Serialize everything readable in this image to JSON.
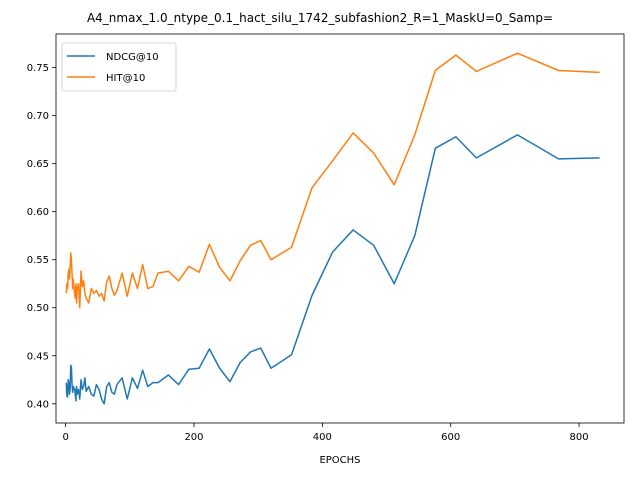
{
  "chart_data": {
    "type": "line",
    "title": "A4_nmax_1.0_ntype_0.1_hact_silu_1742_subfashion2_R=1_MaskU=0_Samp=",
    "xlabel": "EPOCHS",
    "ylabel": "",
    "xlim": [
      -15,
      870
    ],
    "ylim": [
      0.38,
      0.785
    ],
    "xticks": [
      0,
      200,
      400,
      600,
      800
    ],
    "yticks": [
      0.4,
      0.45,
      0.5,
      0.55,
      0.6,
      0.65,
      0.7,
      0.75
    ],
    "ytick_labels": [
      "0.40",
      "0.45",
      "0.50",
      "0.55",
      "0.60",
      "0.65",
      "0.70",
      "0.75"
    ],
    "grid": false,
    "legend_position": "upper-left",
    "series": [
      {
        "name": "NDCG@10",
        "color": "#1f77b4",
        "x": [
          1,
          2,
          3,
          4,
          5,
          6,
          7,
          8,
          9,
          10,
          11,
          12,
          13,
          14,
          15,
          16,
          17,
          18,
          20,
          22,
          24,
          26,
          28,
          30,
          32,
          36,
          40,
          44,
          48,
          52,
          56,
          60,
          64,
          68,
          72,
          76,
          80,
          88,
          96,
          104,
          112,
          120,
          128,
          136,
          144,
          160,
          176,
          192,
          208,
          224,
          240,
          256,
          272,
          288,
          304,
          320,
          352,
          384,
          416,
          448,
          480,
          512,
          544,
          576,
          608,
          640,
          704,
          768,
          832
        ],
        "values": [
          0.422,
          0.408,
          0.407,
          0.425,
          0.422,
          0.41,
          0.415,
          0.44,
          0.438,
          0.42,
          0.412,
          0.418,
          0.415,
          0.416,
          0.41,
          0.403,
          0.418,
          0.41,
          0.415,
          0.405,
          0.425,
          0.415,
          0.418,
          0.427,
          0.413,
          0.418,
          0.41,
          0.408,
          0.42,
          0.415,
          0.405,
          0.4,
          0.418,
          0.422,
          0.412,
          0.41,
          0.42,
          0.427,
          0.405,
          0.427,
          0.416,
          0.435,
          0.418,
          0.422,
          0.422,
          0.43,
          0.42,
          0.436,
          0.437,
          0.457,
          0.437,
          0.423,
          0.443,
          0.454,
          0.458,
          0.437,
          0.451,
          0.513,
          0.558,
          0.581,
          0.565,
          0.525,
          0.575,
          0.666,
          0.678,
          0.656,
          0.68,
          0.655,
          0.656
        ]
      },
      {
        "name": "HIT@10",
        "color": "#ff7f0e",
        "x": [
          1,
          2,
          3,
          4,
          5,
          6,
          7,
          8,
          9,
          10,
          11,
          12,
          13,
          14,
          15,
          16,
          17,
          18,
          20,
          22,
          24,
          26,
          28,
          30,
          32,
          36,
          40,
          44,
          48,
          52,
          56,
          60,
          64,
          68,
          72,
          76,
          80,
          88,
          96,
          104,
          112,
          120,
          128,
          136,
          144,
          160,
          176,
          192,
          208,
          224,
          240,
          256,
          272,
          288,
          304,
          320,
          352,
          384,
          416,
          448,
          480,
          512,
          544,
          576,
          608,
          640,
          704,
          768,
          832
        ],
        "values": [
          0.515,
          0.525,
          0.52,
          0.535,
          0.54,
          0.53,
          0.542,
          0.557,
          0.55,
          0.535,
          0.52,
          0.53,
          0.52,
          0.515,
          0.51,
          0.525,
          0.505,
          0.52,
          0.525,
          0.5,
          0.538,
          0.522,
          0.528,
          0.515,
          0.51,
          0.505,
          0.52,
          0.515,
          0.518,
          0.512,
          0.515,
          0.507,
          0.527,
          0.533,
          0.52,
          0.513,
          0.518,
          0.536,
          0.512,
          0.536,
          0.52,
          0.545,
          0.52,
          0.522,
          0.536,
          0.538,
          0.528,
          0.543,
          0.537,
          0.566,
          0.542,
          0.528,
          0.549,
          0.565,
          0.57,
          0.55,
          0.563,
          0.625,
          0.653,
          0.682,
          0.661,
          0.628,
          0.68,
          0.747,
          0.763,
          0.746,
          0.765,
          0.747,
          0.745
        ]
      }
    ]
  }
}
